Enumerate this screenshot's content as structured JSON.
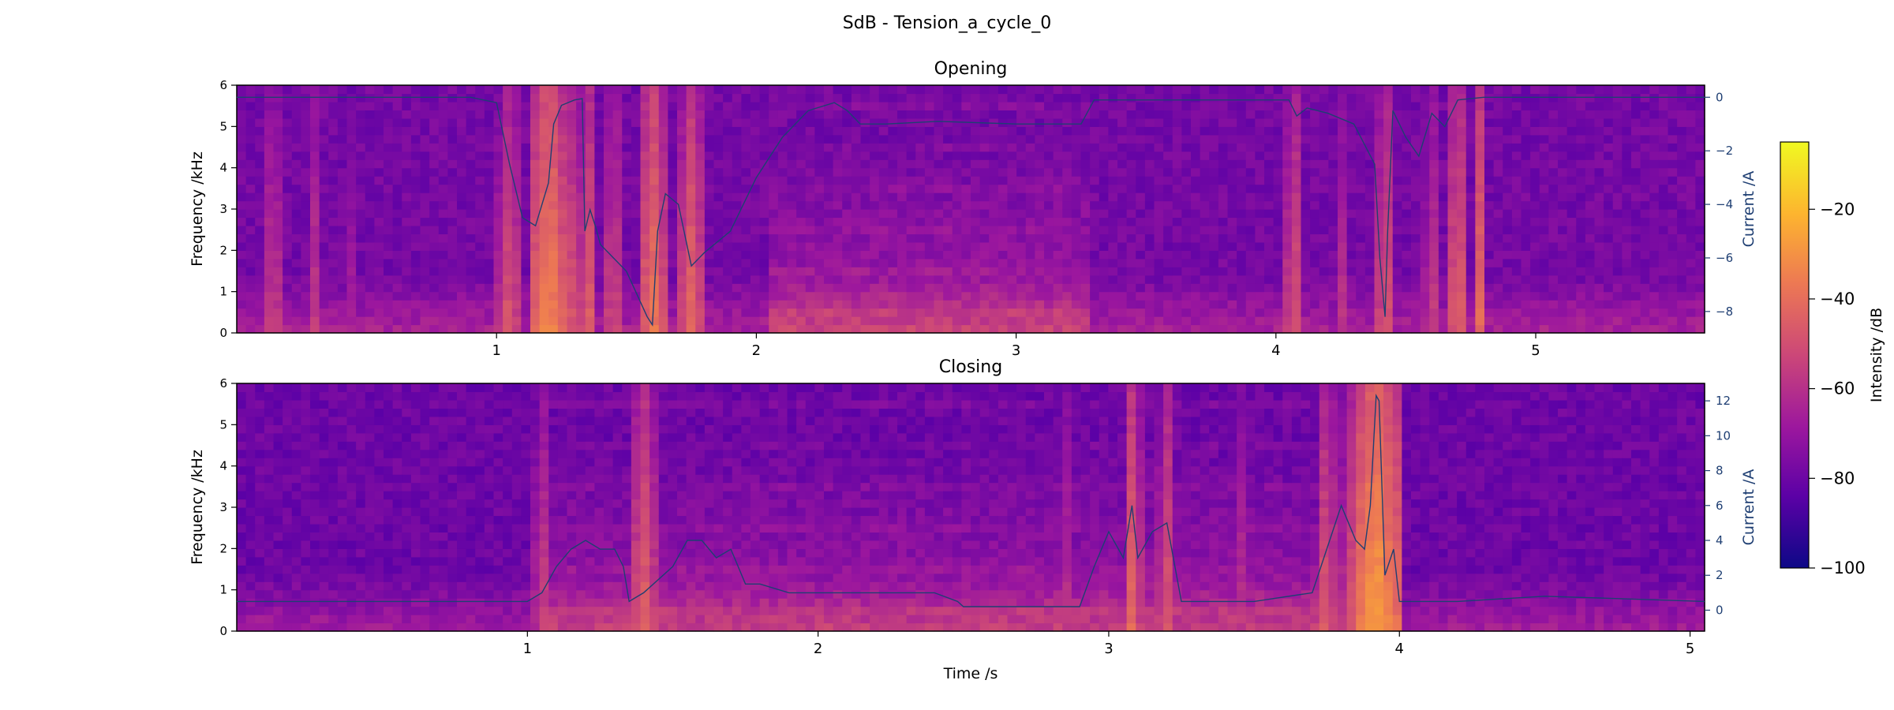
{
  "figure": {
    "suptitle": "SdB - Tension_a_cycle_0"
  },
  "colors": {
    "current_line": "#1f3f73",
    "current_axis": "#1f3f73",
    "colormap": [
      "#0d0887",
      "#5c01a6",
      "#9c179e",
      "#cc4778",
      "#ed7953",
      "#fdb42f",
      "#f0f921"
    ]
  },
  "colorbar": {
    "label": "Intensity /dB",
    "range": [
      -100,
      -5
    ],
    "ticks": [
      "−20",
      "−40",
      "−60",
      "−80",
      "−100"
    ],
    "tick_values": [
      -20,
      -40,
      -60,
      -80,
      -100
    ]
  },
  "chart_data": [
    {
      "type": "heatmap",
      "title": "Opening",
      "ylabel": "Frequency /kHz",
      "y2label": "Current /A",
      "xlim": [
        0,
        5.65
      ],
      "ylim": [
        0,
        6
      ],
      "y2lim": [
        -8.8,
        0.45
      ],
      "x_ticks": [
        "1",
        "2",
        "3",
        "4",
        "5"
      ],
      "x_tick_values": [
        1,
        2,
        3,
        4,
        5
      ],
      "y_ticks": [
        "0",
        "1",
        "2",
        "3",
        "4",
        "5",
        "6"
      ],
      "y_tick_values": [
        0,
        1,
        2,
        3,
        4,
        5,
        6
      ],
      "y2_ticks": [
        "0",
        "−2",
        "−4",
        "−6",
        "−8"
      ],
      "y2_tick_values": [
        0,
        -2,
        -4,
        -6,
        -8
      ],
      "spectrogram": {
        "base_db": -78,
        "active_band": [
          2.05,
          3.3
        ],
        "bursts": [
          {
            "t": 0.14,
            "w": 0.02,
            "db": -48
          },
          {
            "t": 0.3,
            "w": 0.015,
            "db": -55
          },
          {
            "t": 0.45,
            "w": 0.015,
            "db": -58
          },
          {
            "t": 1.05,
            "w": 0.03,
            "db": -45
          },
          {
            "t": 1.2,
            "w": 0.04,
            "db": -30
          },
          {
            "t": 1.27,
            "w": 0.02,
            "db": -38
          },
          {
            "t": 1.35,
            "w": 0.02,
            "db": -40
          },
          {
            "t": 1.45,
            "w": 0.02,
            "db": -45
          },
          {
            "t": 1.6,
            "w": 0.03,
            "db": -35
          },
          {
            "t": 1.75,
            "w": 0.03,
            "db": -40
          },
          {
            "t": 4.07,
            "w": 0.025,
            "db": -45
          },
          {
            "t": 4.25,
            "w": 0.02,
            "db": -55
          },
          {
            "t": 4.42,
            "w": 0.02,
            "db": -42
          },
          {
            "t": 4.6,
            "w": 0.02,
            "db": -50
          },
          {
            "t": 4.7,
            "w": 0.025,
            "db": -40
          },
          {
            "t": 4.78,
            "w": 0.02,
            "db": -38
          }
        ]
      },
      "current": {
        "name": "Current /A",
        "t": [
          0.0,
          0.5,
          0.9,
          1.0,
          1.05,
          1.1,
          1.15,
          1.2,
          1.22,
          1.25,
          1.3,
          1.33,
          1.34,
          1.36,
          1.38,
          1.4,
          1.5,
          1.58,
          1.6,
          1.62,
          1.65,
          1.7,
          1.75,
          1.8,
          1.9,
          2.0,
          2.1,
          2.2,
          2.3,
          2.35,
          2.4,
          2.5,
          2.7,
          3.0,
          3.25,
          3.3,
          3.5,
          3.8,
          4.05,
          4.08,
          4.12,
          4.2,
          4.3,
          4.38,
          4.4,
          4.42,
          4.43,
          4.45,
          4.5,
          4.55,
          4.6,
          4.65,
          4.7,
          4.8,
          5.0,
          5.65
        ],
        "values": [
          0.0,
          0.0,
          0.0,
          -0.2,
          -2.5,
          -4.5,
          -4.8,
          -3.2,
          -1.0,
          -0.3,
          -0.1,
          -0.05,
          -5.0,
          -4.2,
          -4.8,
          -5.5,
          -6.5,
          -8.2,
          -8.5,
          -5.0,
          -3.6,
          -4.0,
          -6.3,
          -5.8,
          -5.0,
          -3.0,
          -1.5,
          -0.5,
          -0.2,
          -0.5,
          -1.0,
          -1.0,
          -0.9,
          -1.0,
          -1.0,
          -0.1,
          -0.1,
          -0.1,
          -0.1,
          -0.7,
          -0.4,
          -0.6,
          -1.0,
          -2.5,
          -6.0,
          -8.2,
          -5.0,
          -0.5,
          -1.5,
          -2.2,
          -0.6,
          -1.1,
          -0.1,
          0.0,
          0.0,
          0.0
        ]
      }
    },
    {
      "type": "heatmap",
      "title": "Closing",
      "xlabel": "Time /s",
      "ylabel": "Frequency /kHz",
      "y2label": "Current /A",
      "xlim": [
        0,
        5.05
      ],
      "ylim": [
        0,
        6
      ],
      "y2lim": [
        -1.2,
        13.0
      ],
      "x_ticks": [
        "1",
        "2",
        "3",
        "4",
        "5"
      ],
      "x_tick_values": [
        1,
        2,
        3,
        4,
        5
      ],
      "y_ticks": [
        "0",
        "1",
        "2",
        "3",
        "4",
        "5",
        "6"
      ],
      "y_tick_values": [
        0,
        1,
        2,
        3,
        4,
        5,
        6
      ],
      "y2_ticks": [
        "0",
        "2",
        "4",
        "6",
        "8",
        "10",
        "12"
      ],
      "y2_tick_values": [
        0,
        2,
        4,
        6,
        8,
        10,
        12
      ],
      "spectrogram": {
        "base_db": -80,
        "active_band": [
          1.05,
          3.9
        ],
        "bursts": [
          {
            "t": 1.05,
            "w": 0.02,
            "db": -50
          },
          {
            "t": 1.4,
            "w": 0.03,
            "db": -42
          },
          {
            "t": 2.85,
            "w": 0.02,
            "db": -55
          },
          {
            "t": 3.08,
            "w": 0.02,
            "db": -40
          },
          {
            "t": 3.2,
            "w": 0.02,
            "db": -45
          },
          {
            "t": 3.45,
            "w": 0.02,
            "db": -55
          },
          {
            "t": 3.75,
            "w": 0.02,
            "db": -42
          },
          {
            "t": 3.83,
            "w": 0.02,
            "db": -45
          },
          {
            "t": 3.92,
            "w": 0.05,
            "db": -25
          }
        ]
      },
      "current": {
        "name": "Current /A",
        "t": [
          0.0,
          0.5,
          1.0,
          1.05,
          1.1,
          1.15,
          1.2,
          1.25,
          1.3,
          1.33,
          1.35,
          1.4,
          1.5,
          1.55,
          1.6,
          1.65,
          1.7,
          1.75,
          1.8,
          1.9,
          2.0,
          2.2,
          2.4,
          2.48,
          2.5,
          2.7,
          2.9,
          2.95,
          3.0,
          3.05,
          3.08,
          3.1,
          3.15,
          3.2,
          3.25,
          3.3,
          3.5,
          3.7,
          3.75,
          3.8,
          3.85,
          3.88,
          3.9,
          3.92,
          3.93,
          3.95,
          3.98,
          4.0,
          4.2,
          4.5,
          5.05
        ],
        "values": [
          0.5,
          0.5,
          0.5,
          1.0,
          2.5,
          3.5,
          4.0,
          3.5,
          3.5,
          2.5,
          0.5,
          1.0,
          2.5,
          4.0,
          4.0,
          3.0,
          3.5,
          1.5,
          1.5,
          1.0,
          1.0,
          1.0,
          1.0,
          0.5,
          0.2,
          0.2,
          0.2,
          2.5,
          4.5,
          3.0,
          6.0,
          3.0,
          4.5,
          5.0,
          0.5,
          0.5,
          0.5,
          1.0,
          3.5,
          6.0,
          4.0,
          3.5,
          6.0,
          12.3,
          12.0,
          2.0,
          3.5,
          0.5,
          0.5,
          0.8,
          0.5
        ]
      }
    }
  ]
}
